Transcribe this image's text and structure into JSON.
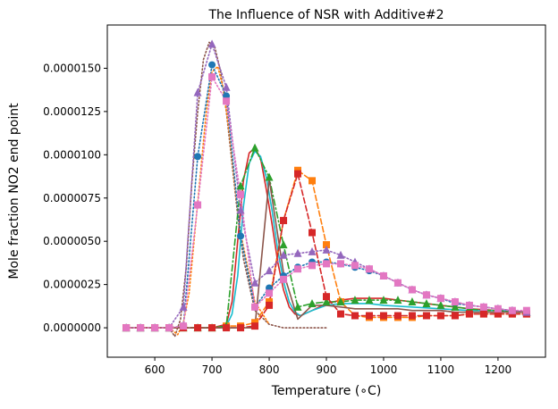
{
  "chart_data": {
    "type": "line",
    "title": "The Influence of NSR with Additive#2",
    "xlabel": "Temperature (∘C)",
    "ylabel": "Mole fraction NO2 end point",
    "xlim": [
      517,
      1283
    ],
    "ylim": [
      -1.7e-06,
      1.75e-05
    ],
    "xticks": [
      600,
      700,
      800,
      900,
      1000,
      1100,
      1200
    ],
    "xtick_labels": [
      "600",
      "700",
      "800",
      "900",
      "1000",
      "1100",
      "1200"
    ],
    "yticks": [
      0.0,
      2.5e-06,
      5e-06,
      7.5e-06,
      1e-05,
      1.25e-05,
      1.5e-05
    ],
    "ytick_labels": [
      "0.0000000",
      "0.0000025",
      "0.0000050",
      "0.0000075",
      "0.0000100",
      "0.0000125",
      "0.0000150"
    ],
    "grid": false,
    "series": [
      {
        "color": "#1f77b4",
        "style": "dotted",
        "marker": "circle",
        "x": [
          550,
          575,
          600,
          625,
          650,
          675,
          700,
          725,
          750,
          775,
          800,
          825,
          850,
          875,
          900,
          925,
          950,
          975,
          1000,
          1025,
          1050,
          1075,
          1100,
          1125,
          1150,
          1175,
          1200,
          1225,
          1250
        ],
        "y": [
          0,
          0,
          0,
          0,
          1e-07,
          9.9e-06,
          1.52e-05,
          1.34e-05,
          5.3e-06,
          1.2e-06,
          2.3e-06,
          3e-06,
          3.5e-06,
          3.8e-06,
          3.8e-06,
          3.7e-06,
          3.5e-06,
          3.3e-06,
          3e-06,
          2.6e-06,
          2.2e-06,
          1.9e-06,
          1.7e-06,
          1.4e-06,
          1.3e-06,
          1.2e-06,
          1.1e-06,
          1e-06,
          9e-07
        ]
      },
      {
        "color": "#ff7f0e",
        "style": "dashed",
        "marker": "square",
        "x": [
          550,
          575,
          600,
          625,
          650,
          675,
          700,
          725,
          750,
          775,
          800,
          825,
          850,
          875,
          900,
          925,
          950,
          975,
          1000,
          1025,
          1050,
          1075,
          1100,
          1125,
          1150,
          1175,
          1200,
          1225,
          1250
        ],
        "y": [
          0,
          0,
          0,
          0,
          0,
          0,
          0,
          1e-07,
          1e-07,
          3e-07,
          1.5e-06,
          6.2e-06,
          9.1e-06,
          8.5e-06,
          4.8e-06,
          1.5e-06,
          7e-07,
          6e-07,
          6e-07,
          6e-07,
          6e-07,
          7e-07,
          7e-07,
          7e-07,
          8e-07,
          8e-07,
          8e-07,
          8e-07,
          8e-07
        ]
      },
      {
        "color": "#2ca02c",
        "style": "dashdot",
        "marker": "triangle",
        "x": [
          550,
          575,
          600,
          625,
          650,
          675,
          700,
          725,
          750,
          775,
          800,
          825,
          850,
          875,
          900,
          925,
          950,
          975,
          1000,
          1025,
          1050,
          1075,
          1100,
          1125,
          1150,
          1175,
          1200,
          1225,
          1250
        ],
        "y": [
          0,
          0,
          0,
          0,
          0,
          0,
          0,
          1e-07,
          8.2e-06,
          1.04e-05,
          8.7e-06,
          4.8e-06,
          1.2e-06,
          1.4e-06,
          1.5e-06,
          1.5e-06,
          1.6e-06,
          1.6e-06,
          1.6e-06,
          1.6e-06,
          1.5e-06,
          1.4e-06,
          1.3e-06,
          1.2e-06,
          1.1e-06,
          1e-06,
          1e-06,
          9e-07,
          9e-07
        ]
      },
      {
        "color": "#d62728",
        "style": "dashed",
        "marker": "square",
        "x": [
          550,
          575,
          600,
          625,
          650,
          675,
          700,
          725,
          750,
          775,
          800,
          825,
          850,
          875,
          900,
          925,
          950,
          975,
          1000,
          1025,
          1050,
          1075,
          1100,
          1125,
          1150,
          1175,
          1200,
          1225,
          1250
        ],
        "y": [
          0,
          0,
          0,
          0,
          0,
          0,
          0,
          0,
          0,
          1e-07,
          1.3e-06,
          6.2e-06,
          8.9e-06,
          5.5e-06,
          1.8e-06,
          8e-07,
          7e-07,
          7e-07,
          7e-07,
          7e-07,
          7e-07,
          7e-07,
          7e-07,
          7e-07,
          8e-07,
          8e-07,
          8e-07,
          8e-07,
          8e-07
        ]
      },
      {
        "color": "#9467bd",
        "style": "dotted",
        "marker": "triangle",
        "x": [
          550,
          575,
          600,
          625,
          650,
          675,
          700,
          725,
          750,
          775,
          800,
          825,
          850,
          875,
          900,
          925,
          950,
          975,
          1000,
          1025,
          1050,
          1075,
          1100,
          1125,
          1150,
          1175,
          1200,
          1225,
          1250
        ],
        "y": [
          0,
          0,
          0,
          0,
          1.2e-06,
          1.36e-05,
          1.64e-05,
          1.39e-05,
          6.8e-06,
          2.6e-06,
          3.3e-06,
          4.2e-06,
          4.3e-06,
          4.4e-06,
          4.5e-06,
          4.2e-06,
          3.8e-06,
          3.4e-06,
          3e-06,
          2.6e-06,
          2.2e-06,
          1.9e-06,
          1.7e-06,
          1.5e-06,
          1.3e-06,
          1.2e-06,
          1.1e-06,
          1e-06,
          9e-07
        ]
      },
      {
        "color": "#8c564b",
        "style": "solid",
        "marker": "none",
        "x": [
          550,
          575,
          600,
          625,
          650,
          675,
          700,
          725,
          750,
          775,
          800,
          825,
          850,
          875,
          900,
          925,
          950,
          975,
          1000,
          1025,
          1050,
          1075,
          1100,
          1125,
          1150,
          1175,
          1200,
          1225,
          1250
        ],
        "y": [
          0,
          0,
          0,
          0,
          0,
          0,
          0,
          0,
          0,
          0,
          8.6e-06,
          3.2e-06,
          5e-07,
          1.3e-06,
          1.3e-06,
          1.2e-06,
          1.1e-06,
          1.1e-06,
          1.1e-06,
          1.1e-06,
          1e-06,
          1e-06,
          1e-06,
          9e-07,
          9e-07,
          9e-07,
          9e-07,
          9e-07,
          9e-07
        ]
      },
      {
        "color": "#e377c2",
        "style": "dotted",
        "marker": "square",
        "x": [
          550,
          575,
          600,
          625,
          650,
          675,
          700,
          725,
          750,
          775,
          800,
          825,
          850,
          875,
          900,
          925,
          950,
          975,
          1000,
          1025,
          1050,
          1075,
          1100,
          1125,
          1150,
          1175,
          1200,
          1225,
          1250
        ],
        "y": [
          0,
          0,
          0,
          0,
          1e-07,
          7.1e-06,
          1.45e-05,
          1.31e-05,
          7.7e-06,
          1.2e-06,
          2e-06,
          2.8e-06,
          3.4e-06,
          3.6e-06,
          3.7e-06,
          3.7e-06,
          3.6e-06,
          3.4e-06,
          3e-06,
          2.6e-06,
          2.2e-06,
          1.9e-06,
          1.7e-06,
          1.5e-06,
          1.3e-06,
          1.2e-06,
          1.1e-06,
          1e-06,
          1e-06
        ]
      }
    ],
    "smooth_curves": [
      {
        "color": "#8c564b",
        "style": "dotted",
        "x": [
          600,
          625,
          635,
          645,
          655,
          665,
          675,
          685,
          695,
          705,
          715,
          725,
          735,
          745,
          755,
          775,
          800,
          825,
          850,
          875,
          900
        ],
        "y": [
          0,
          0,
          -5e-07,
          5e-07,
          3.5e-06,
          8.5e-06,
          1.25e-05,
          1.55e-05,
          1.65e-05,
          1.62e-05,
          1.48e-05,
          1.25e-05,
          9.5e-06,
          6.5e-06,
          4e-06,
          1e-06,
          2e-07,
          0,
          0,
          0,
          0
        ]
      },
      {
        "color": "#ff7f0e",
        "style": "dotted",
        "x": [
          600,
          625,
          640,
          650,
          660,
          670,
          680,
          690,
          700,
          710,
          720,
          730,
          740,
          750,
          775,
          800
        ],
        "y": [
          0,
          0,
          -4e-07,
          3e-07,
          2e-06,
          5.5e-06,
          9e-06,
          1.25e-05,
          1.48e-05,
          1.51e-05,
          1.38e-05,
          1.13e-05,
          8.2e-06,
          5.5e-06,
          1.5e-06,
          2e-07
        ]
      },
      {
        "color": "#d62728",
        "style": "solid",
        "x": [
          700,
          725,
          735,
          745,
          755,
          765,
          775,
          785,
          795,
          805,
          815,
          825,
          835,
          845,
          855,
          875,
          900,
          925,
          950,
          975,
          1000,
          1025,
          1050,
          1075,
          1100,
          1150,
          1200,
          1250
        ],
        "y": [
          0,
          2e-07,
          1.5e-06,
          5e-06,
          8.5e-06,
          1.01e-05,
          1.04e-05,
          9.8e-06,
          8e-06,
          6e-06,
          3.8e-06,
          2.2e-06,
          1.2e-06,
          8e-07,
          7e-07,
          1e-06,
          1.4e-06,
          1.6e-06,
          1.7e-06,
          1.7e-06,
          1.7e-06,
          1.6e-06,
          1.5e-06,
          1.4e-06,
          1.3e-06,
          1.1e-06,
          1e-06,
          9e-07
        ]
      },
      {
        "color": "#17becf",
        "style": "solid",
        "x": [
          700,
          725,
          735,
          745,
          755,
          765,
          775,
          785,
          795,
          805,
          815,
          825,
          835,
          845,
          855,
          875,
          900,
          925,
          950,
          975,
          1000,
          1050,
          1100,
          1150,
          1200,
          1250
        ],
        "y": [
          0,
          1e-07,
          8e-07,
          3e-06,
          7e-06,
          9.5e-06,
          1.02e-05,
          9.9e-06,
          8.7e-06,
          6.8e-06,
          4.5e-06,
          2.7e-06,
          1.5e-06,
          9e-07,
          7e-07,
          1e-06,
          1.3e-06,
          1.4e-06,
          1.4e-06,
          1.4e-06,
          1.3e-06,
          1.2e-06,
          1.1e-06,
          1e-06,
          1e-06,
          9e-07
        ]
      }
    ]
  }
}
